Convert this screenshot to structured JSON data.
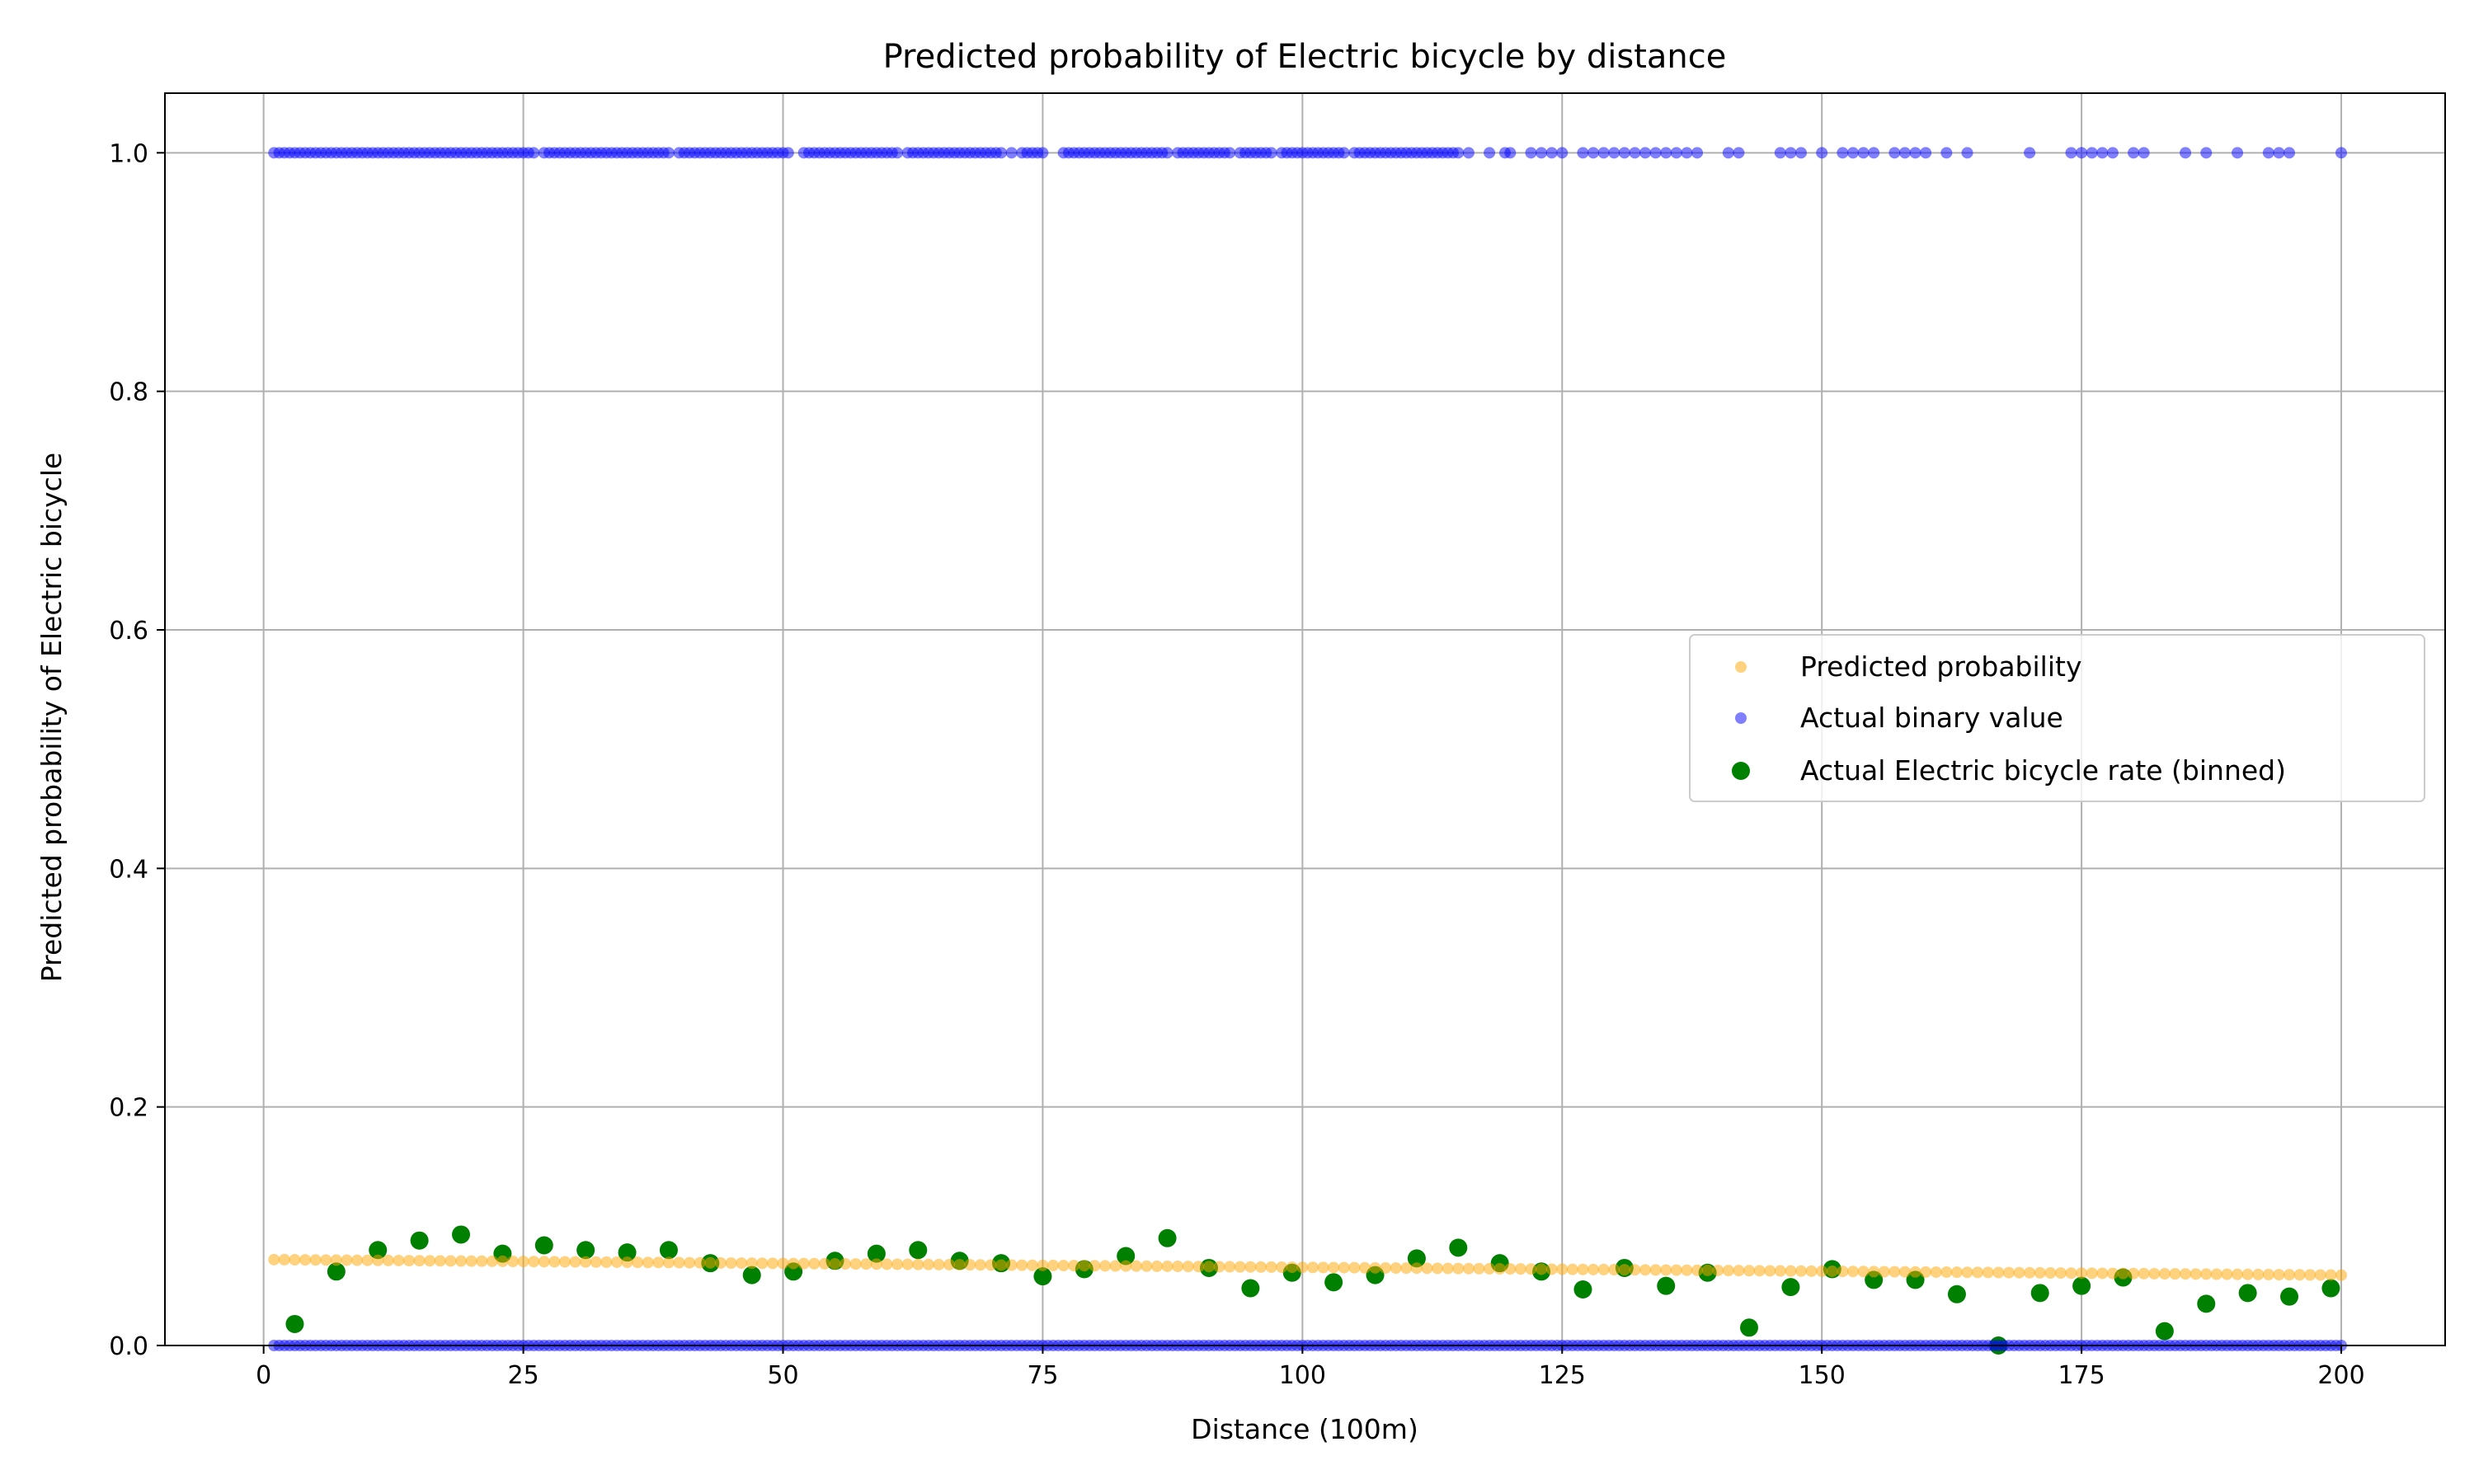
{
  "chart_data": {
    "type": "scatter",
    "title": "Predicted probability of Electric bicycle by distance",
    "xlabel": "Distance (100m)",
    "ylabel": "Predicted probability of Electric bicycle",
    "xlim": [
      -9.5,
      210
    ],
    "ylim": [
      0.0,
      1.05
    ],
    "xticks": [
      0,
      25,
      50,
      75,
      100,
      125,
      150,
      175,
      200
    ],
    "yticks": [
      0.0,
      0.2,
      0.4,
      0.6,
      0.8,
      1.0
    ],
    "grid": true,
    "legend_placement": "center-right",
    "series": [
      {
        "name": "Predicted probability",
        "color": "#FFA500",
        "opacity": 0.5,
        "marker_size": "small",
        "x_start": 1,
        "x_end": 200,
        "y_start": 0.072,
        "y_end": 0.059
      },
      {
        "name": "Actual binary value",
        "color": "#0000FF",
        "opacity": 0.5,
        "marker_size": "small",
        "points_y1_x": [
          1,
          1.5,
          2,
          2.5,
          3,
          3.5,
          4,
          4.5,
          5,
          5.5,
          6,
          6.5,
          7,
          7.5,
          8,
          8.5,
          9,
          9.5,
          10,
          10.5,
          11,
          11.5,
          12,
          12.5,
          13,
          13.5,
          14,
          14.5,
          15,
          15.5,
          16,
          16.5,
          17,
          17.5,
          18,
          18.5,
          19,
          19.5,
          20,
          20.5,
          21,
          21.5,
          22,
          22.5,
          23,
          23.5,
          24,
          24.5,
          25,
          25.5,
          26,
          27,
          27.5,
          28,
          28.5,
          29,
          29.5,
          30,
          30.5,
          31,
          31.5,
          32,
          32.5,
          33,
          33.5,
          34,
          34.5,
          35,
          35.5,
          36,
          36.5,
          37,
          37.5,
          38,
          38.5,
          39,
          40,
          40.5,
          41,
          41.5,
          42,
          42.5,
          43,
          43.5,
          44,
          44.5,
          45,
          45.5,
          46,
          46.5,
          47,
          47.5,
          48,
          48.5,
          49,
          49.5,
          50,
          50.5,
          52,
          52.5,
          53,
          53.5,
          54,
          54.5,
          55,
          55.5,
          56,
          56.5,
          57,
          57.5,
          58,
          58.5,
          59,
          59.5,
          60,
          60.5,
          61,
          62,
          62.5,
          63,
          63.5,
          64,
          64.5,
          65,
          65.5,
          66,
          66.5,
          67,
          67.5,
          68,
          68.5,
          69,
          69.5,
          70,
          70.5,
          71,
          72,
          73,
          73.5,
          74,
          74.5,
          75,
          77,
          77.5,
          78,
          78.5,
          79,
          79.5,
          80,
          80.5,
          81,
          81.5,
          82,
          82.5,
          83,
          83.5,
          84,
          84.5,
          85,
          85.5,
          86,
          86.5,
          87,
          88,
          88.5,
          89,
          89.5,
          90,
          90.5,
          91,
          91.5,
          92,
          92.5,
          93,
          94,
          94.5,
          95,
          95.5,
          96,
          96.5,
          97,
          98,
          98.5,
          99,
          99.5,
          100,
          100.5,
          101,
          101.5,
          102,
          102.5,
          103,
          103.5,
          104,
          105,
          105.5,
          106,
          106.5,
          107,
          107.5,
          108,
          108.5,
          109,
          109.5,
          110,
          110.5,
          111,
          111.5,
          112,
          112.5,
          113,
          113.5,
          114,
          114.5,
          115,
          116,
          118,
          119.5,
          120,
          122,
          123,
          124,
          125,
          127,
          128,
          129,
          130,
          131,
          132,
          133,
          134,
          135,
          136,
          137,
          138,
          141,
          142,
          146,
          147,
          148,
          150,
          152,
          153,
          154,
          155,
          157,
          158,
          159,
          160,
          162,
          164,
          170,
          174,
          175,
          176,
          177,
          178,
          180,
          181,
          185,
          187,
          190,
          193,
          194,
          195,
          200
        ],
        "y0_note": "actual zeros at y = 0 across x 1 to 200"
      },
      {
        "name": "Actual Electric bicycle rate (binned)",
        "color": "#008000",
        "opacity": 1.0,
        "marker_size": "large",
        "x": [
          3,
          7,
          11,
          15,
          19,
          23,
          27,
          31,
          35,
          39,
          43,
          47,
          51,
          55,
          59,
          63,
          67,
          71,
          75,
          79,
          83,
          87,
          91,
          95,
          99,
          103,
          107,
          111,
          115,
          119,
          123,
          127,
          131,
          135,
          139,
          143,
          147,
          151,
          155,
          159,
          163,
          167,
          171,
          175,
          179,
          183,
          187,
          191,
          195,
          199
        ],
        "y": [
          0.018,
          0.062,
          0.08,
          0.088,
          0.093,
          0.077,
          0.084,
          0.08,
          0.078,
          0.08,
          0.069,
          0.059,
          0.062,
          0.071,
          0.077,
          0.08,
          0.071,
          0.069,
          0.058,
          0.064,
          0.075,
          0.09,
          0.065,
          0.048,
          0.061,
          0.053,
          0.059,
          0.073,
          0.082,
          0.069,
          0.062,
          0.047,
          0.065,
          0.05,
          0.061,
          0.015,
          0.049,
          0.064,
          0.055,
          0.055,
          0.043,
          0.0,
          0.044,
          0.05,
          0.057,
          0.012,
          0.035,
          0.044,
          0.041,
          0.048
        ]
      }
    ]
  }
}
